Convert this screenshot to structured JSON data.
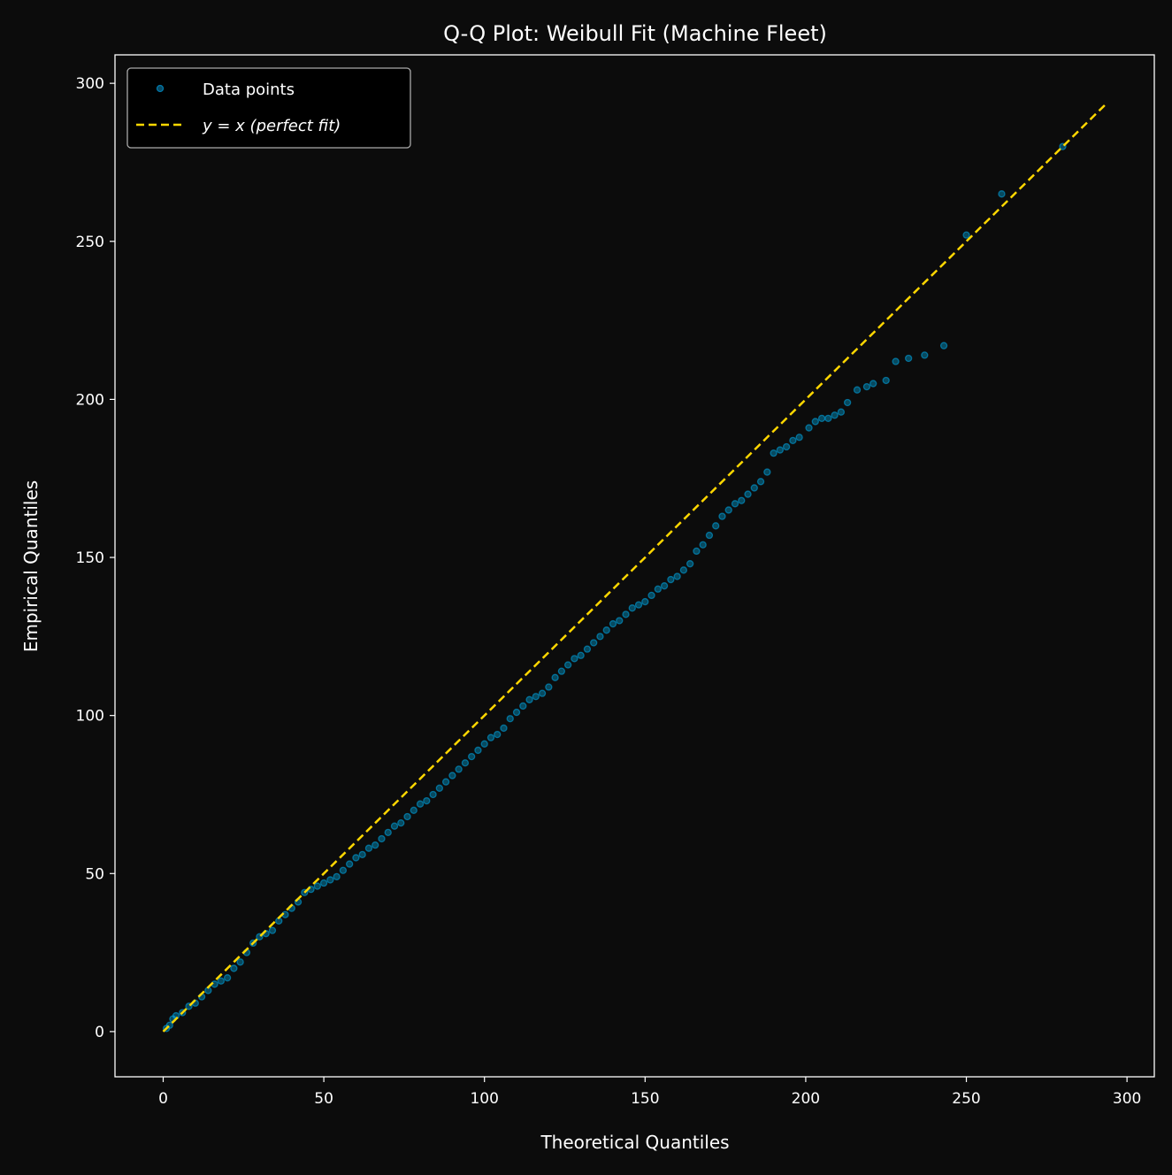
{
  "chart_data": {
    "type": "scatter",
    "title": "Q-Q Plot: Weibull Fit (Machine Fleet)",
    "xlabel": "Theoretical Quantiles",
    "ylabel": "Empirical Quantiles",
    "xlim": [
      -15,
      308.5
    ],
    "ylim": [
      -14.3,
      309
    ],
    "xticks": [
      0,
      50,
      100,
      150,
      200,
      250,
      300
    ],
    "yticks": [
      0,
      50,
      100,
      150,
      200,
      250,
      300
    ],
    "grid": false,
    "legend_placement": "top-left",
    "colors": {
      "points": "#00bfff",
      "line": "#ffd700",
      "background": "#0c0c0c",
      "legend_bg": "#000000"
    },
    "series": [
      {
        "name": "Data points",
        "kind": "scatter",
        "points": [
          [
            1,
            1
          ],
          [
            2,
            2
          ],
          [
            3,
            4
          ],
          [
            4,
            5
          ],
          [
            6,
            6
          ],
          [
            8,
            8
          ],
          [
            10,
            9
          ],
          [
            12,
            11
          ],
          [
            14,
            13
          ],
          [
            16,
            15
          ],
          [
            18,
            16
          ],
          [
            20,
            17
          ],
          [
            22,
            20
          ],
          [
            24,
            22
          ],
          [
            26,
            25
          ],
          [
            28,
            28
          ],
          [
            30,
            30
          ],
          [
            32,
            31
          ],
          [
            34,
            32
          ],
          [
            36,
            35
          ],
          [
            38,
            37
          ],
          [
            40,
            39
          ],
          [
            42,
            41
          ],
          [
            44,
            44
          ],
          [
            46,
            45
          ],
          [
            48,
            46
          ],
          [
            50,
            47
          ],
          [
            52,
            48
          ],
          [
            54,
            49
          ],
          [
            56,
            51
          ],
          [
            58,
            53
          ],
          [
            60,
            55
          ],
          [
            62,
            56
          ],
          [
            64,
            58
          ],
          [
            66,
            59
          ],
          [
            68,
            61
          ],
          [
            70,
            63
          ],
          [
            72,
            65
          ],
          [
            74,
            66
          ],
          [
            76,
            68
          ],
          [
            78,
            70
          ],
          [
            80,
            72
          ],
          [
            82,
            73
          ],
          [
            84,
            75
          ],
          [
            86,
            77
          ],
          [
            88,
            79
          ],
          [
            90,
            81
          ],
          [
            92,
            83
          ],
          [
            94,
            85
          ],
          [
            96,
            87
          ],
          [
            98,
            89
          ],
          [
            100,
            91
          ],
          [
            102,
            93
          ],
          [
            104,
            94
          ],
          [
            106,
            96
          ],
          [
            108,
            99
          ],
          [
            110,
            101
          ],
          [
            112,
            103
          ],
          [
            114,
            105
          ],
          [
            116,
            106
          ],
          [
            118,
            107
          ],
          [
            120,
            109
          ],
          [
            122,
            112
          ],
          [
            124,
            114
          ],
          [
            126,
            116
          ],
          [
            128,
            118
          ],
          [
            130,
            119
          ],
          [
            132,
            121
          ],
          [
            134,
            123
          ],
          [
            136,
            125
          ],
          [
            138,
            127
          ],
          [
            140,
            129
          ],
          [
            142,
            130
          ],
          [
            144,
            132
          ],
          [
            146,
            134
          ],
          [
            148,
            135
          ],
          [
            150,
            136
          ],
          [
            152,
            138
          ],
          [
            154,
            140
          ],
          [
            156,
            141
          ],
          [
            158,
            143
          ],
          [
            160,
            144
          ],
          [
            162,
            146
          ],
          [
            164,
            148
          ],
          [
            166,
            152
          ],
          [
            168,
            154
          ],
          [
            170,
            157
          ],
          [
            172,
            160
          ],
          [
            174,
            163
          ],
          [
            176,
            165
          ],
          [
            178,
            167
          ],
          [
            180,
            168
          ],
          [
            182,
            170
          ],
          [
            184,
            172
          ],
          [
            186,
            174
          ],
          [
            188,
            177
          ],
          [
            190,
            183
          ],
          [
            192,
            184
          ],
          [
            194,
            185
          ],
          [
            196,
            187
          ],
          [
            198,
            188
          ],
          [
            201,
            191
          ],
          [
            203,
            193
          ],
          [
            205,
            194
          ],
          [
            207,
            194
          ],
          [
            209,
            195
          ],
          [
            211,
            196
          ],
          [
            213,
            199
          ],
          [
            216,
            203
          ],
          [
            219,
            204
          ],
          [
            221,
            205
          ],
          [
            225,
            206
          ],
          [
            228,
            212
          ],
          [
            232,
            213
          ],
          [
            237,
            214
          ],
          [
            243,
            217
          ],
          [
            250,
            252
          ],
          [
            261,
            265
          ],
          [
            280,
            280
          ]
        ]
      },
      {
        "name": "y = x (perfect fit)",
        "kind": "line",
        "points": [
          [
            0,
            0
          ],
          [
            294,
            294
          ]
        ]
      }
    ]
  }
}
